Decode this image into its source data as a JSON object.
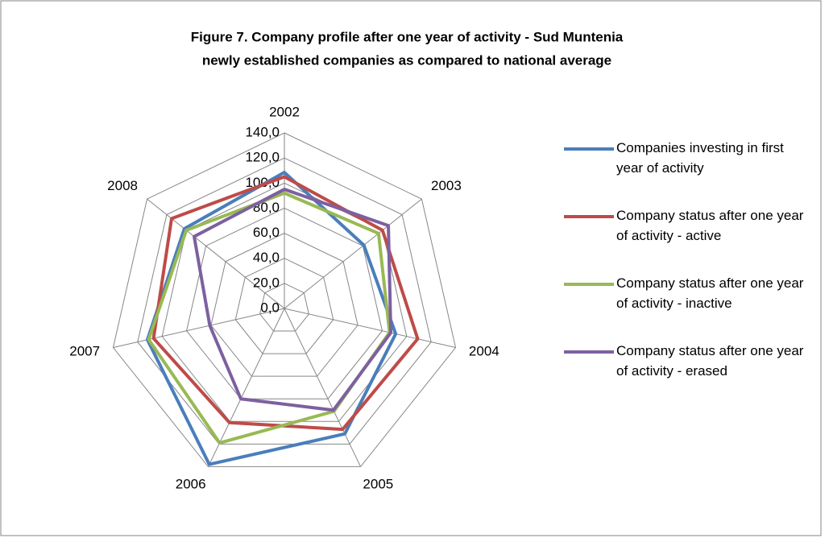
{
  "chart_data": {
    "type": "radar",
    "title": [
      "Figure 7. Company profile after one year of activity - Sud Muntenia",
      "newly established companies as compared to national average"
    ],
    "categories": [
      "2002",
      "2003",
      "2004",
      "2005",
      "2006",
      "2007",
      "2008"
    ],
    "series": [
      {
        "name": "Companies investing in first year of activity",
        "color": "#4a7ebb",
        "values": [
          108.5,
          81,
          91,
          111,
          138,
          112,
          102
        ]
      },
      {
        "name": "Company status after one year of activity - active",
        "color": "#be4b48",
        "values": [
          105,
          100,
          109,
          107,
          101,
          107,
          115
        ]
      },
      {
        "name": "Company status after one year of activity - inactive",
        "color": "#98b954",
        "values": [
          92,
          96,
          86,
          91,
          119,
          111,
          100
        ]
      },
      {
        "name": "Company status after one year of activity - erased",
        "color": "#7d60a0",
        "values": [
          95,
          106,
          87,
          90,
          80,
          61,
          92
        ]
      }
    ],
    "ylim": [
      0,
      140
    ],
    "yticks": [
      {
        "value": 0,
        "label": "0,0"
      },
      {
        "value": 20,
        "label": "20,0"
      },
      {
        "value": 40,
        "label": "40,0"
      },
      {
        "value": 60,
        "label": "60,0"
      },
      {
        "value": 80,
        "label": "80,0"
      },
      {
        "value": 100,
        "label": "100,0"
      },
      {
        "value": 120,
        "label": "120,0"
      },
      {
        "value": 140,
        "label": "140,0"
      }
    ],
    "grid": true,
    "legend": "right"
  }
}
